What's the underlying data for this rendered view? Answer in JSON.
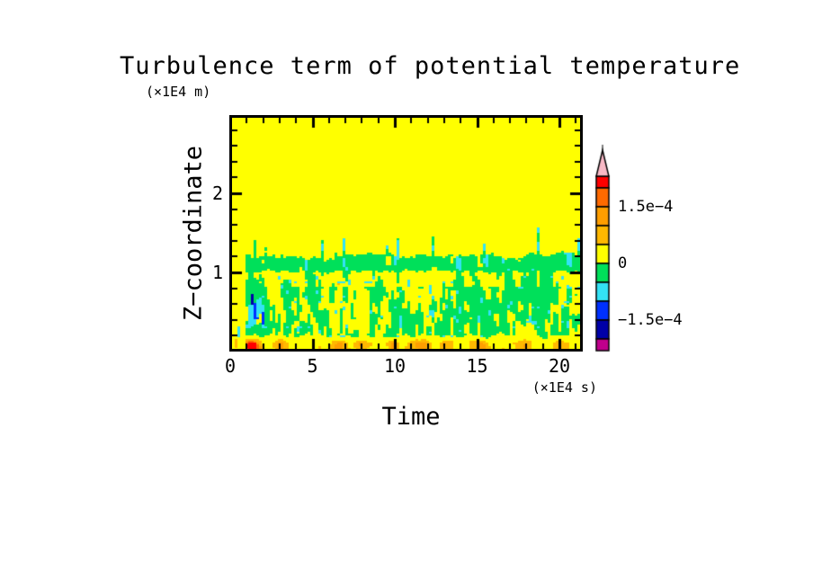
{
  "page": {
    "background": "#FFFFFF"
  },
  "chart_data": {
    "type": "heatmap",
    "title": "Turbulence term of potential temperature",
    "xlabel": "Time",
    "x_unit": "(×1E4 s)",
    "ylabel": "Z−coordinate",
    "y_unit": "(×1E4 m)",
    "x_range": [
      0,
      21.3
    ],
    "y_range": [
      0.03,
      2.95
    ],
    "x_major_ticks": [
      {
        "label": "0",
        "t": 0
      },
      {
        "label": "5",
        "t": 5
      },
      {
        "label": "10",
        "t": 10
      },
      {
        "label": "15",
        "t": 15
      },
      {
        "label": "20",
        "t": 20
      }
    ],
    "x_minor_step": 1,
    "y_major_ticks": [
      {
        "label": "1",
        "z": 1
      },
      {
        "label": "2",
        "z": 2
      }
    ],
    "y_minor_step": 0.2,
    "value_units": "1e-4",
    "color_levels": [
      {
        "min": 2.0,
        "color": "#FF0000"
      },
      {
        "min": 1.5,
        "color": "#FF6A00"
      },
      {
        "min": 1.0,
        "color": "#FF9E00"
      },
      {
        "min": 0.5,
        "color": "#FFB800"
      },
      {
        "min": 0.0,
        "color": "#FFFF00"
      },
      {
        "min": -0.5,
        "color": "#00E05A"
      },
      {
        "min": -1.0,
        "color": "#33E2F5"
      },
      {
        "min": -1.5,
        "color": "#0030FF"
      },
      {
        "min": -2.0,
        "color": "#0000A8"
      },
      {
        "min": -9.9,
        "color": "#C0008C"
      }
    ],
    "colorbar": {
      "overflow_color": "#F8B9C6",
      "segments": [
        {
          "color": "#FF0000",
          "v0": 2.0,
          "v1": 2.31
        },
        {
          "color": "#FF6A00",
          "v0": 1.5,
          "v1": 2.0
        },
        {
          "color": "#FF9E00",
          "v0": 1.0,
          "v1": 1.5
        },
        {
          "color": "#FFB800",
          "v0": 0.5,
          "v1": 1.0
        },
        {
          "color": "#FFFF00",
          "v0": 0.0,
          "v1": 0.5
        },
        {
          "color": "#00E05A",
          "v0": -0.5,
          "v1": 0.0
        },
        {
          "color": "#33E2F5",
          "v0": -1.0,
          "v1": -0.5
        },
        {
          "color": "#0030FF",
          "v0": -1.5,
          "v1": -1.0
        },
        {
          "color": "#0000A8",
          "v0": -2.0,
          "v1": -1.5
        },
        {
          "color": "#C0008C",
          "v0": -2.31,
          "v1": -2.0
        }
      ],
      "labels": [
        {
          "text": "1.5e−4",
          "value": 1.5
        },
        {
          "text": "0",
          "value": 0
        },
        {
          "text": "−1.5e−4",
          "value": -1.5
        }
      ]
    },
    "field": {
      "background_value": 0.08,
      "onset_time": 0.95,
      "mixed_layer": {
        "top_base": 1.21,
        "top_jitter": 0.12,
        "solid_band": [
          1.02,
          1.3
        ],
        "warm_band": [
          0.82,
          1.0
        ],
        "surface_band_depth": 0.16
      },
      "spikes": [
        {
          "t": 1.5,
          "h": 1.42,
          "w": 0.22
        },
        {
          "t": 2.2,
          "h": 1.4,
          "w": 0.18
        },
        {
          "t": 3.25,
          "h": 1.47,
          "w": 0.12
        },
        {
          "t": 5.6,
          "h": 1.42,
          "w": 0.2
        },
        {
          "t": 6.35,
          "h": 1.5,
          "w": 0.16
        },
        {
          "t": 6.9,
          "h": 1.44,
          "w": 0.14
        },
        {
          "t": 9.5,
          "h": 1.4,
          "w": 0.18
        },
        {
          "t": 10.2,
          "h": 1.42,
          "w": 0.14
        },
        {
          "t": 11.4,
          "h": 1.36,
          "w": 0.2
        },
        {
          "t": 12.35,
          "h": 1.52,
          "w": 0.16
        },
        {
          "t": 15.4,
          "h": 1.4,
          "w": 0.3
        },
        {
          "t": 16.7,
          "h": 1.34,
          "w": 0.12
        },
        {
          "t": 18.0,
          "h": 1.42,
          "w": 0.12
        },
        {
          "t": 18.7,
          "h": 1.58,
          "w": 0.14
        },
        {
          "t": 21.2,
          "h": 1.46,
          "w": 0.18
        }
      ],
      "surface_blobs": [
        {
          "t": 1.3,
          "w": 0.5,
          "s": 2.3
        },
        {
          "t": 3.1,
          "w": 0.35,
          "s": 0.8
        },
        {
          "t": 6.6,
          "w": 0.4,
          "s": 1.1
        },
        {
          "t": 7.9,
          "w": 0.3,
          "s": 0.6
        },
        {
          "t": 9.9,
          "w": 0.3,
          "s": 1.0
        },
        {
          "t": 11.6,
          "w": 0.45,
          "s": 1.05
        },
        {
          "t": 13.0,
          "w": 0.3,
          "s": 0.65
        },
        {
          "t": 15.3,
          "w": 0.4,
          "s": 0.9
        },
        {
          "t": 17.8,
          "w": 0.35,
          "s": 0.6
        },
        {
          "t": 20.0,
          "w": 0.4,
          "s": 0.7
        }
      ],
      "downdraft_streaks": [
        {
          "t": 1.22,
          "z0": 0.3,
          "z1": 0.72,
          "w": 0.045,
          "tilt": 0.25,
          "v": -1.7
        },
        {
          "t": 1.45,
          "z0": 0.35,
          "z1": 0.62,
          "w": 0.04,
          "tilt": 0.2,
          "v": -1.25
        },
        {
          "t": 1.7,
          "z0": 0.42,
          "z1": 0.68,
          "w": 0.04,
          "tilt": 0.3,
          "v": -1.25
        },
        {
          "t": 2.0,
          "z0": 0.35,
          "z1": 0.6,
          "w": 0.035,
          "tilt": 0.2,
          "v": -1.2
        }
      ],
      "pre_onset_features": [
        {
          "t": 0.45,
          "z": 0.38,
          "rt": 0.06,
          "rz": 0.1,
          "v": -1.3
        },
        {
          "t": 0.55,
          "z": 0.25,
          "rt": 0.05,
          "rz": 0.06,
          "v": -0.7
        },
        {
          "t": 0.3,
          "z": 0.1,
          "rt": 0.1,
          "rz": 0.05,
          "v": 0.8
        }
      ],
      "fleck_threshold": 0.87,
      "fleck_value": -0.65
    }
  }
}
